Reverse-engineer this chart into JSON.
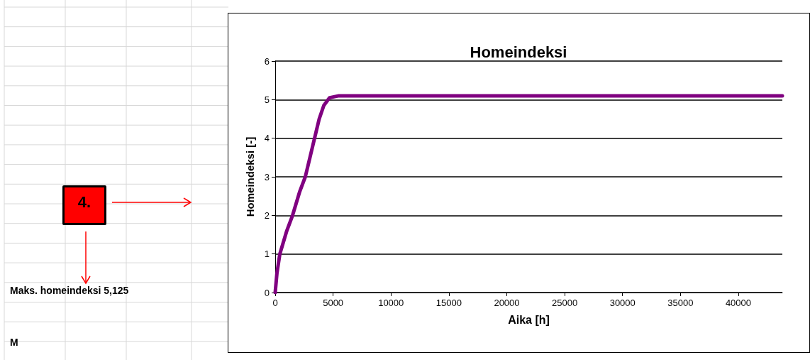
{
  "chart_data": {
    "type": "line",
    "title": "Homeindeksi",
    "xlabel": "Aika [h]",
    "ylabel": "Homeindeksi [-]",
    "x": [
      0,
      150,
      400,
      1000,
      1500,
      2100,
      2600,
      3000,
      3400,
      3800,
      4200,
      4700,
      5500,
      8000,
      20000,
      32000,
      43800
    ],
    "series": [
      {
        "color": "#800080",
        "values": [
          0,
          0.5,
          1.0,
          1.6,
          2.0,
          2.6,
          3.0,
          3.5,
          4.0,
          4.5,
          4.85,
          5.05,
          5.1,
          5.1,
          5.1,
          5.1,
          5.1
        ]
      }
    ],
    "xlim": [
      0,
      43800
    ],
    "xticks": [
      0,
      5000,
      10000,
      15000,
      20000,
      25000,
      30000,
      35000,
      40000
    ],
    "ylim": [
      0,
      6
    ],
    "yticks": [
      0,
      1,
      2,
      3,
      4,
      5,
      6
    ],
    "grid": "y",
    "marker": "none",
    "line_style": "solid",
    "annotations": [
      "4.",
      "Maks. homeindeksi 5,125",
      "M"
    ]
  }
}
